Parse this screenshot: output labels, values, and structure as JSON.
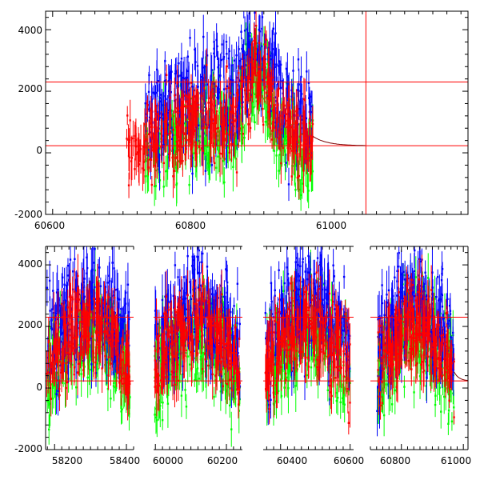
{
  "chart_data": [
    {
      "type": "scatter",
      "title": "",
      "xlabel": "",
      "ylabel": "",
      "xlim": [
        60590,
        61190
      ],
      "ylim": [
        -2000,
        4600
      ],
      "x_ticks": [
        "60600",
        "60800",
        "61000"
      ],
      "y_ticks": [
        "-2000",
        "0",
        "2000",
        "4000"
      ],
      "series_colors": {
        "green": "#00ff00",
        "blue": "#0000ff",
        "red": "#ff0000"
      },
      "observation_range": [
        60730,
        60970
      ],
      "sparse_points_x_range": [
        60705,
        60730
      ],
      "model_levels": [
        2300,
        230
      ],
      "model_vertical_line_x": 61045,
      "grid": false,
      "legend": "none"
    },
    {
      "type": "scatter",
      "title": "",
      "xlabel": "",
      "ylabel": "",
      "segments": [
        {
          "xlim": [
            58175,
            58420
          ],
          "x_ticks": [
            "58200",
            "58400"
          ],
          "data_range": [
            58178,
            58410
          ]
        },
        {
          "xlim": [
            59995,
            60245
          ],
          "x_ticks": [
            "60000",
            "60200"
          ],
          "data_range": [
            59998,
            60238
          ]
        },
        {
          "xlim": [
            60350,
            60610
          ],
          "x_ticks": [
            "60400",
            "60600"
          ],
          "data_range": [
            60356,
            60600
          ]
        },
        {
          "xlim": [
            60700,
            61015
          ],
          "x_ticks": [
            "60800",
            "61000"
          ],
          "data_range": [
            60722,
            60970
          ]
        }
      ],
      "ylim": [
        -2000,
        4600
      ],
      "y_ticks": [
        "-2000",
        "0",
        "2000",
        "4000"
      ],
      "series_colors": {
        "green": "#00ff00",
        "blue": "#0000ff",
        "red": "#ff0000"
      },
      "model_levels": [
        2300,
        230
      ],
      "grid": false,
      "legend": "none"
    }
  ]
}
